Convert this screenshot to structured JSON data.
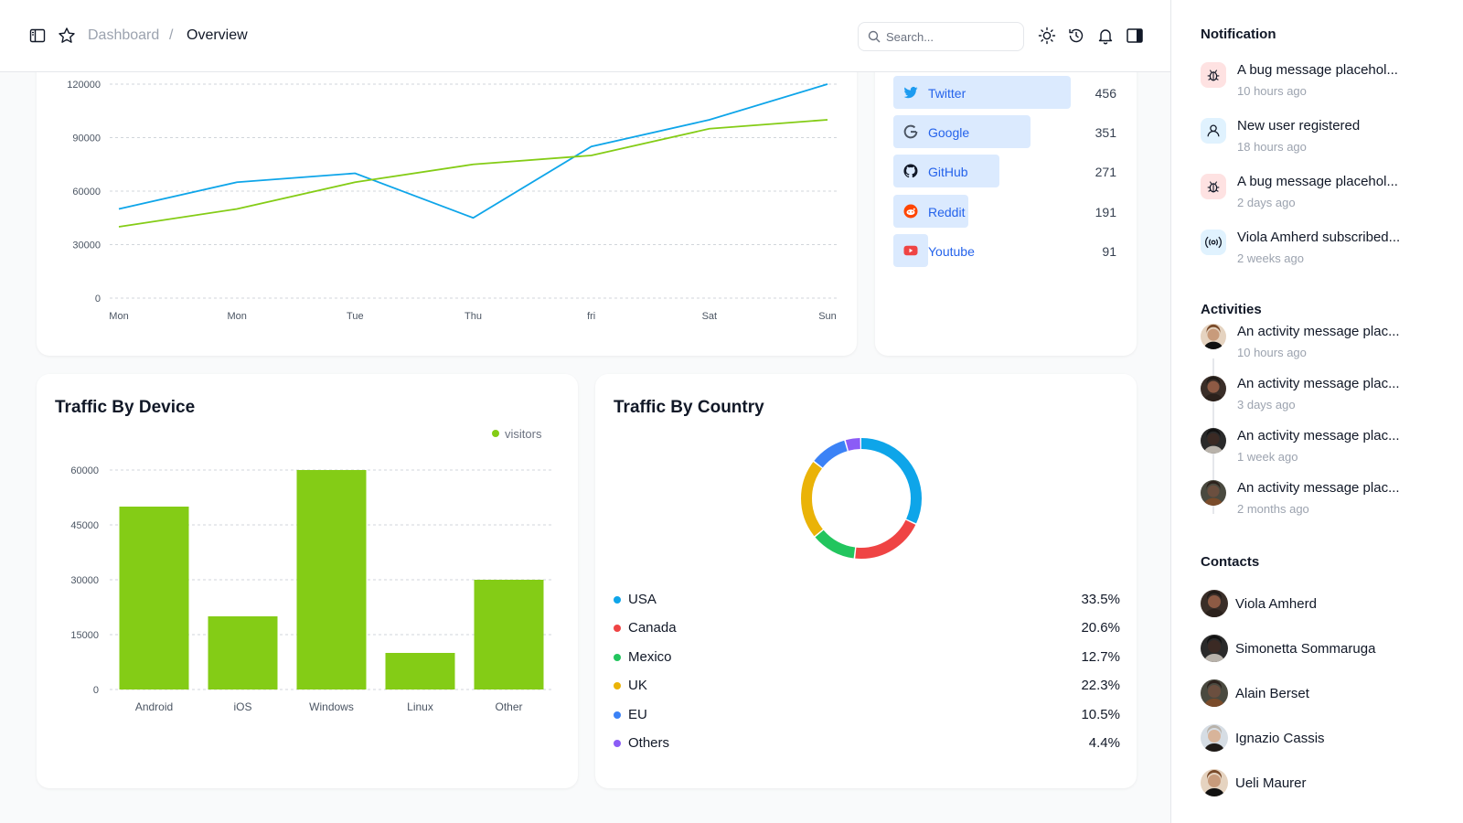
{
  "header": {
    "breadcrumb": {
      "parent": "Dashboard",
      "separator": "/",
      "current": "Overview"
    },
    "search": {
      "placeholder": "Search..."
    },
    "icons": [
      "sidebar-toggle-icon",
      "star-icon",
      "sun-icon",
      "history-icon",
      "bell-icon",
      "panel-right-icon"
    ]
  },
  "line_chart": {
    "chart_data": {
      "type": "line",
      "categories": [
        "Mon",
        "Mon",
        "Tue",
        "Thu",
        "fri",
        "Sat",
        "Sun"
      ],
      "series": [
        {
          "values": [
            50000,
            65000,
            70000,
            45000,
            85000,
            100000,
            120000
          ],
          "color": "#0ea5e9"
        },
        {
          "values": [
            40000,
            50000,
            65000,
            75000,
            80000,
            95000,
            100000
          ],
          "color": "#84cc16"
        }
      ],
      "yticks": [
        "120000",
        "90000",
        "60000",
        "30000",
        "0"
      ],
      "ylim": [
        0,
        120000
      ],
      "grid": true
    }
  },
  "sources": {
    "items": [
      {
        "label": "Twitter",
        "value": "456",
        "icon": "twitter-icon"
      },
      {
        "label": "Google",
        "value": "351",
        "icon": "google-icon"
      },
      {
        "label": "GitHub",
        "value": "271",
        "icon": "github-icon"
      },
      {
        "label": "Reddit",
        "value": "191",
        "icon": "reddit-icon"
      },
      {
        "label": "Youtube",
        "value": "91",
        "icon": "youtube-icon"
      }
    ]
  },
  "device": {
    "title": "Traffic By Device",
    "chart_data": {
      "type": "bar",
      "categories": [
        "Android",
        "iOS",
        "Windows",
        "Linux",
        "Other"
      ],
      "series": [
        {
          "name": "visitors",
          "values": [
            50000,
            20000,
            60000,
            10000,
            30000
          ]
        }
      ],
      "yticks": [
        "60000",
        "45000",
        "30000",
        "15000",
        "0"
      ],
      "ylim": [
        0,
        60000
      ],
      "legend": "top-right",
      "color": "#84cc16"
    }
  },
  "country": {
    "title": "Traffic By Country",
    "chart_data": {
      "type": "pie",
      "donut": true,
      "categories": [
        "USA",
        "Canada",
        "Mexico",
        "UK",
        "EU",
        "Others"
      ],
      "values": [
        33.5,
        20.6,
        12.7,
        22.3,
        10.5,
        4.4
      ],
      "colors": [
        "#0ea5e9",
        "#ef4444",
        "#22c55e",
        "#eab308",
        "#3b82f6",
        "#8b5cf6"
      ]
    },
    "rows": [
      {
        "name": "USA",
        "pct": "33.5%",
        "color": "#0ea5e9"
      },
      {
        "name": "Canada",
        "pct": "20.6%",
        "color": "#ef4444"
      },
      {
        "name": "Mexico",
        "pct": "12.7%",
        "color": "#22c55e"
      },
      {
        "name": "UK",
        "pct": "22.3%",
        "color": "#eab308"
      },
      {
        "name": "EU",
        "pct": "10.5%",
        "color": "#3b82f6"
      },
      {
        "name": "Others",
        "pct": "4.4%",
        "color": "#8b5cf6"
      }
    ]
  },
  "sidebar": {
    "notifications_title": "Notification",
    "notifications": [
      {
        "text": "A bug message placehol...",
        "time": "10 hours ago",
        "icon": "bug-icon"
      },
      {
        "text": "New user registered",
        "time": "18 hours ago",
        "icon": "user-icon"
      },
      {
        "text": "A bug message placehol...",
        "time": "2 days ago",
        "icon": "bug-icon"
      },
      {
        "text": "Viola Amherd subscribed...",
        "time": "2 weeks ago",
        "icon": "broadcast-icon"
      }
    ],
    "activities_title": "Activities",
    "activities": [
      {
        "text": "An activity message plac...",
        "time": "10 hours ago"
      },
      {
        "text": "An activity message plac...",
        "time": "3 days ago"
      },
      {
        "text": "An activity message plac...",
        "time": "1 week ago"
      },
      {
        "text": "An activity message plac...",
        "time": "2 months ago"
      }
    ],
    "contacts_title": "Contacts",
    "contacts": [
      {
        "name": "Viola Amherd"
      },
      {
        "name": "Simonetta Sommaruga"
      },
      {
        "name": "Alain Berset"
      },
      {
        "name": "Ignazio Cassis"
      },
      {
        "name": "Ueli Maurer"
      }
    ]
  }
}
